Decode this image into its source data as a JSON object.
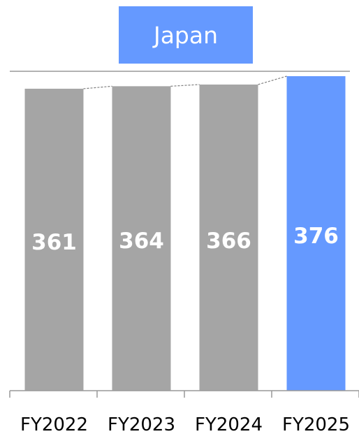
{
  "chart_data": {
    "type": "bar",
    "title": "Japan",
    "categories": [
      "FY2022",
      "FY2023",
      "FY2024",
      "FY2025"
    ],
    "values": [
      361,
      364,
      366,
      376
    ],
    "ylim": [
      0,
      376
    ],
    "grid": false,
    "legend": "none",
    "colors": {
      "bar_default": "#A5A5A5",
      "bar_highlight": "#6599FF",
      "title_box": "#6599FF",
      "bar_label": "#ffffff",
      "axis": "#999999",
      "connector": "#7F7F7F"
    },
    "highlight_index": 3
  }
}
